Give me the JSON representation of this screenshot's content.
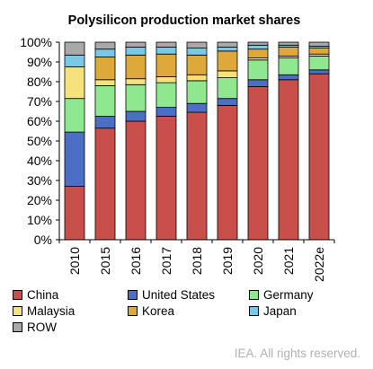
{
  "chart_data": {
    "type": "bar",
    "stacked": true,
    "title": "Polysilicon production market shares",
    "xlabel": "",
    "ylabel": "",
    "ylim": [
      0,
      100
    ],
    "yticks": [
      "0%",
      "10%",
      "20%",
      "30%",
      "40%",
      "50%",
      "60%",
      "70%",
      "80%",
      "90%",
      "100%"
    ],
    "grid": false,
    "legend_position": "bottom",
    "categories": [
      "2010",
      "2015",
      "2016",
      "2017",
      "2018",
      "2019",
      "2020",
      "2021",
      "2022e"
    ],
    "series": [
      {
        "name": "China",
        "color": "#c9504a",
        "values": [
          27,
          56.5,
          60,
          62.5,
          64.5,
          68,
          77.5,
          81,
          84
        ]
      },
      {
        "name": "United States",
        "color": "#4a6fc5",
        "values": [
          27.5,
          6,
          5,
          4.5,
          4.5,
          3.5,
          3.5,
          2.5,
          2
        ]
      },
      {
        "name": "Germany",
        "color": "#8fe88f",
        "values": [
          17,
          15.5,
          13.5,
          12.5,
          11.5,
          10.5,
          10,
          8.5,
          7
        ]
      },
      {
        "name": "Malaysia",
        "color": "#f6e27d",
        "values": [
          16,
          3,
          3,
          3,
          3,
          3.5,
          1,
          1,
          1
        ]
      },
      {
        "name": "Korea",
        "color": "#dfa83a",
        "values": [
          0,
          11.5,
          12,
          11.5,
          10,
          10,
          4.5,
          4.5,
          3
        ]
      },
      {
        "name": "Japan",
        "color": "#78c8e8",
        "values": [
          6,
          4,
          4,
          3.5,
          3.5,
          2,
          2,
          1,
          1
        ]
      },
      {
        "name": "ROW",
        "color": "#a9a9a9",
        "values": [
          6.5,
          3.5,
          2.5,
          2.5,
          3,
          2.5,
          1.5,
          1.5,
          2
        ]
      }
    ]
  },
  "footer": "IEA. All rights reserved."
}
